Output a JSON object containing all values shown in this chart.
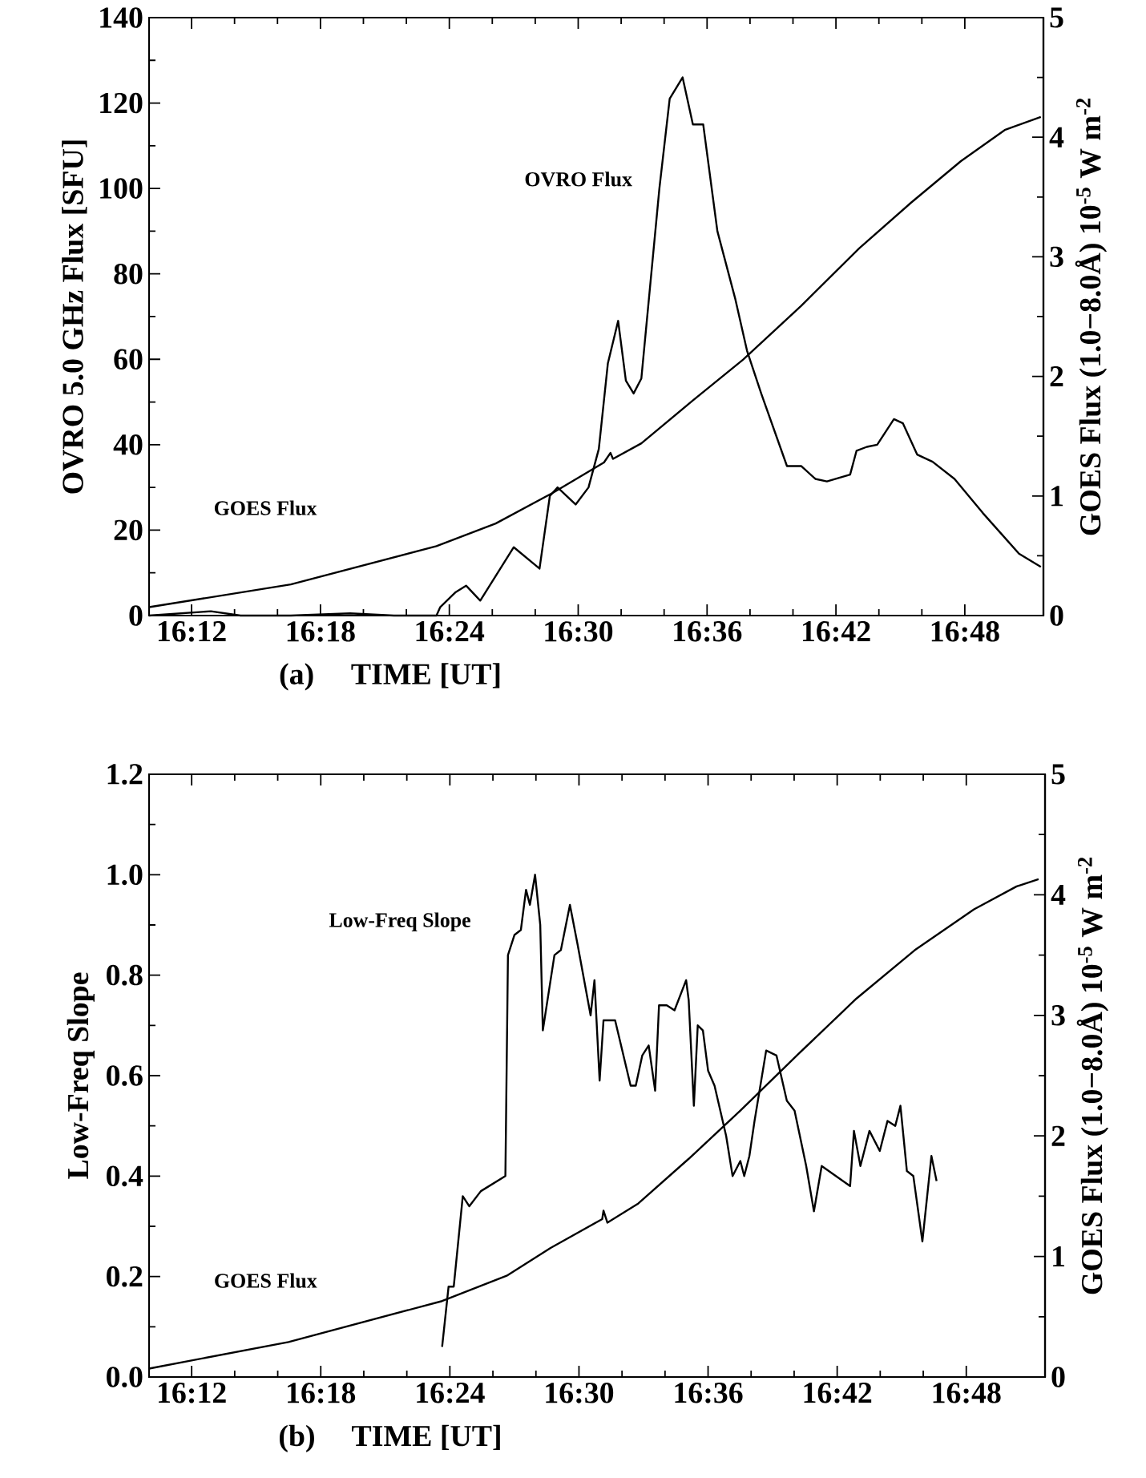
{
  "chart_data": [
    {
      "type": "line",
      "xlabel": "TIME [UT]",
      "ylabel": "OVRO 5.0 GHz Flux [SFU]",
      "y2label": "GOES Flux (1.0−8.0Å) 10$^{-5}$ W m$^{-2}$",
      "annotations": [
        "(a)"
      ],
      "xlim": [
        16.167,
        16.861
      ],
      "xticks": [
        {
          "value": 16.2,
          "label": "16:12"
        },
        {
          "value": 16.3,
          "label": "16:18"
        },
        {
          "value": 16.4,
          "label": "16:24"
        },
        {
          "value": 16.5,
          "label": "16:30"
        },
        {
          "value": 16.6,
          "label": "16:36"
        },
        {
          "value": 16.7,
          "label": "16:42"
        },
        {
          "value": 16.8,
          "label": "16:48"
        }
      ],
      "ylim": [
        0,
        140
      ],
      "yticks": [
        0,
        20,
        40,
        60,
        80,
        100,
        120,
        140
      ],
      "y2lim": [
        0,
        5
      ],
      "y2ticks": [
        0,
        1,
        2,
        3,
        4,
        5
      ],
      "series": [
        {
          "name": "OVRO Flux",
          "color": "#000000",
          "x": [
            16.167,
            16.215,
            16.238,
            16.277,
            16.323,
            16.357,
            16.39,
            16.393,
            16.405,
            16.413,
            16.424,
            16.45,
            16.47,
            16.478,
            16.484,
            16.498,
            16.508,
            16.516,
            16.523,
            16.531,
            16.537,
            16.543,
            16.549,
            16.563,
            16.571,
            16.581,
            16.589,
            16.597,
            16.608,
            16.622,
            16.631,
            16.642,
            16.662,
            16.673,
            16.684,
            16.693,
            16.711,
            16.716,
            16.724,
            16.732,
            16.745,
            16.752,
            16.763,
            16.775,
            16.792,
            16.814,
            16.842,
            16.859
          ],
          "values": [
            0,
            1,
            0,
            0,
            0.5,
            0,
            0,
            2,
            5.5,
            7,
            3.5,
            16,
            11,
            28,
            30,
            26,
            30,
            39,
            59,
            69,
            55,
            52,
            55.5,
            100,
            121,
            126,
            115,
            115,
            90,
            74,
            62,
            52,
            35,
            35,
            32,
            31.4,
            33,
            38.6,
            39.5,
            40,
            46,
            45,
            37.7,
            36,
            32,
            24,
            14.5,
            11.4
          ]
        },
        {
          "name": "GOES Flux",
          "color": "#000000",
          "axis": "y2",
          "x": [
            16.167,
            16.277,
            16.39,
            16.436,
            16.481,
            16.52,
            16.525,
            16.527,
            16.549,
            16.588,
            16.628,
            16.673,
            16.718,
            16.758,
            16.797,
            16.831,
            16.859
          ],
          "values": [
            0.07,
            0.26,
            0.58,
            0.77,
            1.03,
            1.28,
            1.36,
            1.31,
            1.44,
            1.79,
            2.14,
            2.59,
            3.07,
            3.45,
            3.8,
            4.06,
            4.17
          ]
        }
      ]
    },
    {
      "type": "line",
      "xlabel": "TIME [UT]",
      "ylabel": "Low-Freq Slope",
      "y2label": "GOES Flux (1.0−8.0Å) 10$^{-5}$ W m$^{-2}$",
      "annotations": [
        "(b)"
      ],
      "xlim": [
        16.167,
        16.861
      ],
      "xticks": [
        {
          "value": 16.2,
          "label": "16:12"
        },
        {
          "value": 16.3,
          "label": "16:18"
        },
        {
          "value": 16.4,
          "label": "16:24"
        },
        {
          "value": 16.5,
          "label": "16:30"
        },
        {
          "value": 16.6,
          "label": "16:36"
        },
        {
          "value": 16.7,
          "label": "16:42"
        },
        {
          "value": 16.8,
          "label": "16:48"
        }
      ],
      "ylim": [
        0,
        1.2
      ],
      "yticks": [
        {
          "value": 0,
          "label": "0.0"
        },
        0.2,
        0.4,
        0.6,
        0.8,
        {
          "value": 1,
          "label": "1.0"
        },
        1.2
      ],
      "y2lim": [
        0,
        5
      ],
      "y2ticks": [
        0,
        1,
        2,
        3,
        4,
        5
      ],
      "series": [
        {
          "name": "Low-Freq Slope",
          "color": "#000000",
          "x": [
            16.394,
            16.399,
            16.403,
            16.41,
            16.415,
            16.424,
            16.443,
            16.445,
            16.45,
            16.455,
            16.459,
            16.462,
            16.466,
            16.47,
            16.472,
            16.481,
            16.486,
            16.493,
            16.499,
            16.509,
            16.512,
            16.516,
            16.519,
            16.528,
            16.54,
            16.544,
            16.549,
            16.554,
            16.559,
            16.562,
            16.568,
            16.574,
            16.583,
            16.585,
            16.589,
            16.592,
            16.596,
            16.6,
            16.605,
            16.614,
            16.619,
            16.625,
            16.628,
            16.632,
            16.636,
            16.645,
            16.653,
            16.661,
            16.667,
            16.676,
            16.682,
            16.688,
            16.71,
            16.713,
            16.718,
            16.725,
            16.733,
            16.739,
            16.745,
            16.749,
            16.754,
            16.759,
            16.766,
            16.773,
            16.777
          ],
          "values": [
            0.06,
            0.18,
            0.18,
            0.36,
            0.34,
            0.37,
            0.4,
            0.84,
            0.88,
            0.89,
            0.97,
            0.94,
            1.0,
            0.9,
            0.69,
            0.84,
            0.85,
            0.94,
            0.86,
            0.72,
            0.79,
            0.59,
            0.71,
            0.71,
            0.58,
            0.58,
            0.64,
            0.66,
            0.57,
            0.74,
            0.74,
            0.73,
            0.79,
            0.75,
            0.54,
            0.7,
            0.69,
            0.61,
            0.58,
            0.48,
            0.4,
            0.43,
            0.4,
            0.44,
            0.51,
            0.65,
            0.64,
            0.55,
            0.53,
            0.42,
            0.33,
            0.42,
            0.38,
            0.49,
            0.42,
            0.49,
            0.45,
            0.51,
            0.5,
            0.54,
            0.41,
            0.4,
            0.27,
            0.44,
            0.39
          ]
        },
        {
          "name": "GOES Flux",
          "color": "#000000",
          "axis": "y2",
          "x": [
            16.167,
            16.275,
            16.394,
            16.444,
            16.478,
            16.518,
            16.519,
            16.522,
            16.546,
            16.585,
            16.625,
            16.67,
            16.715,
            16.76,
            16.806,
            16.839,
            16.856
          ],
          "values": [
            0.07,
            0.29,
            0.63,
            0.84,
            1.07,
            1.31,
            1.38,
            1.28,
            1.44,
            1.81,
            2.21,
            2.68,
            3.14,
            3.54,
            3.88,
            4.07,
            4.13
          ]
        }
      ]
    }
  ]
}
